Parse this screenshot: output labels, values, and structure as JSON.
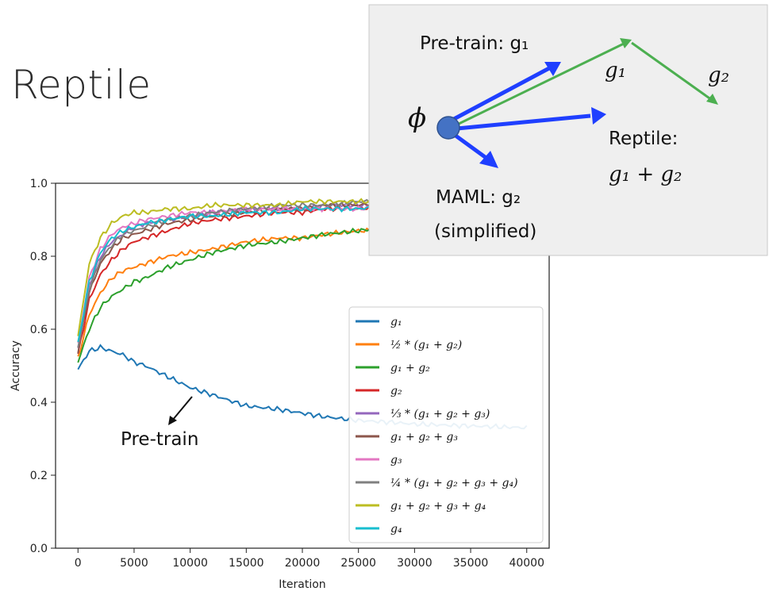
{
  "slide": {
    "title": "Reptile"
  },
  "diagram": {
    "phi_symbol": "ϕ",
    "pretrain_label": "Pre-train: g₁",
    "g1_label": "g₁",
    "g2_label": "g₂",
    "reptile_label": "Reptile:",
    "reptile_formula": "g₁ + g₂",
    "maml_label": "MAML: g₂",
    "maml_note": "(simplified)",
    "colors": {
      "blue_arrow": "#1f3fff",
      "green_arrow": "#4caf50",
      "node": "#4472c4",
      "panel": "#efefef"
    }
  },
  "annotation": {
    "text": "Pre-train"
  },
  "chart_data": {
    "type": "line",
    "xlabel": "Iteration",
    "ylabel": "Accuracy",
    "xlim": [
      -2000,
      42000
    ],
    "ylim": [
      0.0,
      1.0
    ],
    "xticks": [
      0,
      5000,
      10000,
      15000,
      20000,
      25000,
      30000,
      35000,
      40000
    ],
    "xtick_labels": [
      "0",
      "5000",
      "10000",
      "15000",
      "20000",
      "25000",
      "30000",
      "35000",
      "40000"
    ],
    "yticks": [
      0.0,
      0.2,
      0.4,
      0.6,
      0.8,
      1.0
    ],
    "ytick_labels": [
      "0.0",
      "0.2",
      "0.4",
      "0.6",
      "0.8",
      "1.0"
    ],
    "grid": false,
    "legend_position": "lower-right",
    "x": [
      0,
      1000,
      2000,
      3000,
      4000,
      5000,
      6000,
      8000,
      10000,
      12000,
      15000,
      18000,
      20000,
      22000,
      25000,
      28000,
      30000,
      35000,
      40000
    ],
    "series": [
      {
        "name": "g₁",
        "legend": "g1",
        "color": "#1f77b4",
        "values": [
          0.49,
          0.54,
          0.55,
          0.54,
          0.53,
          0.51,
          0.5,
          0.47,
          0.44,
          0.42,
          0.39,
          0.38,
          0.37,
          0.36,
          0.35,
          0.345,
          0.34,
          0.335,
          0.33
        ]
      },
      {
        "name": "½ * (g₁ + g₂)",
        "legend": "half12",
        "color": "#ff7f0e",
        "values": [
          0.52,
          0.64,
          0.7,
          0.74,
          0.76,
          0.77,
          0.78,
          0.8,
          0.81,
          0.82,
          0.84,
          0.85,
          0.85,
          0.86,
          0.87,
          0.87,
          0.88,
          0.88,
          0.89
        ]
      },
      {
        "name": "g₁ + g₂",
        "legend": "sum12",
        "color": "#2ca02c",
        "values": [
          0.51,
          0.6,
          0.66,
          0.69,
          0.71,
          0.73,
          0.74,
          0.77,
          0.79,
          0.81,
          0.83,
          0.84,
          0.85,
          0.86,
          0.87,
          0.88,
          0.88,
          0.89,
          0.89
        ]
      },
      {
        "name": "g₂",
        "legend": "g2",
        "color": "#d62728",
        "values": [
          0.53,
          0.68,
          0.75,
          0.79,
          0.82,
          0.84,
          0.85,
          0.87,
          0.89,
          0.9,
          0.91,
          0.92,
          0.92,
          0.93,
          0.93,
          0.94,
          0.94,
          0.94,
          0.95
        ]
      },
      {
        "name": "⅓ * (g₁ + g₂ + g₃)",
        "legend": "third123",
        "color": "#9467bd",
        "values": [
          0.55,
          0.72,
          0.8,
          0.84,
          0.86,
          0.88,
          0.89,
          0.9,
          0.91,
          0.92,
          0.93,
          0.93,
          0.93,
          0.94,
          0.94,
          0.94,
          0.95,
          0.95,
          0.95
        ]
      },
      {
        "name": "g₁ + g₂ + g₃",
        "legend": "sum123",
        "color": "#8c564b",
        "values": [
          0.54,
          0.7,
          0.78,
          0.82,
          0.85,
          0.86,
          0.87,
          0.89,
          0.9,
          0.91,
          0.92,
          0.93,
          0.93,
          0.94,
          0.94,
          0.95,
          0.95,
          0.95,
          0.95
        ]
      },
      {
        "name": "g₃",
        "legend": "g3",
        "color": "#e377c2",
        "values": [
          0.56,
          0.74,
          0.82,
          0.86,
          0.88,
          0.89,
          0.9,
          0.91,
          0.92,
          0.92,
          0.93,
          0.93,
          0.93,
          0.93,
          0.93,
          0.94,
          0.94,
          0.94,
          0.94
        ]
      },
      {
        "name": "¼ * (g₁ + g₂ + g₃ + g₄)",
        "legend": "quarter1234",
        "color": "#7f7f7f",
        "values": [
          0.55,
          0.71,
          0.79,
          0.83,
          0.86,
          0.87,
          0.88,
          0.9,
          0.91,
          0.92,
          0.93,
          0.94,
          0.94,
          0.94,
          0.95,
          0.95,
          0.95,
          0.95,
          0.95
        ]
      },
      {
        "name": "g₁ + g₂ + g₃ + g₄",
        "legend": "sum1234",
        "color": "#bcbd22",
        "values": [
          0.58,
          0.78,
          0.85,
          0.89,
          0.91,
          0.92,
          0.92,
          0.93,
          0.93,
          0.94,
          0.94,
          0.94,
          0.95,
          0.95,
          0.95,
          0.95,
          0.96,
          0.96,
          0.96
        ]
      },
      {
        "name": "g₄",
        "legend": "g4",
        "color": "#17becf",
        "values": [
          0.56,
          0.73,
          0.81,
          0.85,
          0.87,
          0.88,
          0.89,
          0.9,
          0.91,
          0.91,
          0.92,
          0.92,
          0.93,
          0.93,
          0.93,
          0.94,
          0.94,
          0.94,
          0.94
        ]
      }
    ]
  }
}
